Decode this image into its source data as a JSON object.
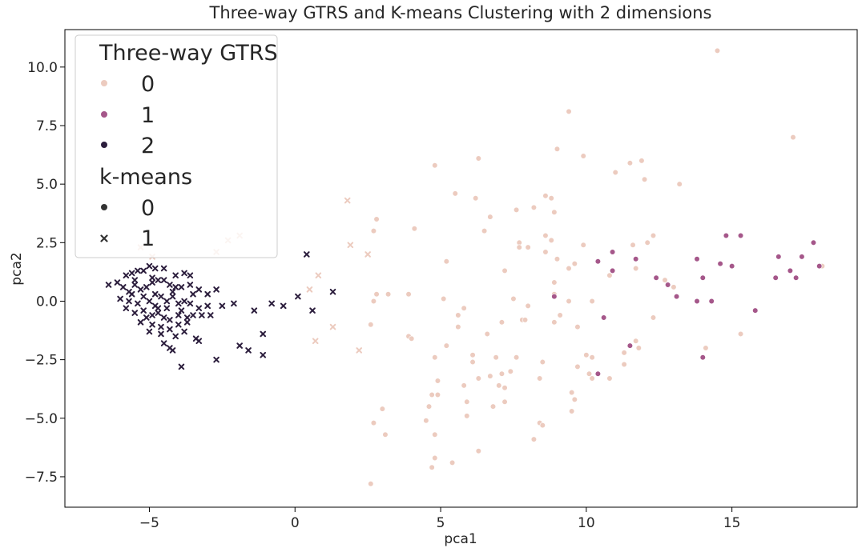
{
  "chart_data": {
    "type": "scatter",
    "title": "Three-way GTRS and K-means Clustering with 2 dimensions",
    "xlabel": "pca1",
    "ylabel": "pca2",
    "xlim": [
      -7.9,
      19.3
    ],
    "ylim": [
      -8.8,
      11.6
    ],
    "xticks": [
      -5,
      0,
      5,
      10,
      15
    ],
    "xtick_labels": [
      "−5",
      "0",
      "5",
      "10",
      "15"
    ],
    "yticks": [
      -7.5,
      -5.0,
      -2.5,
      0.0,
      2.5,
      5.0,
      7.5,
      10.0
    ],
    "ytick_labels": [
      "−7.5",
      "−5.0",
      "−2.5",
      "0.0",
      "2.5",
      "5.0",
      "7.5",
      "10.0"
    ],
    "grid": false,
    "legend_position": "top-left",
    "legend": {
      "hue_title": "Three-way GTRS",
      "hue_entries": [
        {
          "label": "0",
          "color": "#eccbbf"
        },
        {
          "label": "1",
          "color": "#a5578a"
        },
        {
          "label": "2",
          "color": "#2c1e3d"
        }
      ],
      "style_title": "k-means",
      "style_entries": [
        {
          "label": "0",
          "marker": "circle",
          "color": "#333333"
        },
        {
          "label": "1",
          "marker": "x",
          "color": "#333333"
        }
      ]
    },
    "series": [
      {
        "gtrs": "0",
        "kmeans": "0",
        "marker": "circle",
        "color": "#eccbbf",
        "points": [
          [
            14.5,
            10.7
          ],
          [
            9.4,
            8.1
          ],
          [
            17.1,
            7.0
          ],
          [
            9.0,
            6.5
          ],
          [
            9.9,
            6.2
          ],
          [
            6.3,
            6.1
          ],
          [
            11.9,
            6.0
          ],
          [
            11.5,
            5.9
          ],
          [
            4.8,
            5.8
          ],
          [
            11.0,
            5.5
          ],
          [
            12.0,
            5.2
          ],
          [
            13.2,
            5.0
          ],
          [
            5.5,
            4.6
          ],
          [
            6.2,
            4.4
          ],
          [
            8.6,
            4.5
          ],
          [
            8.8,
            4.4
          ],
          [
            8.2,
            4.0
          ],
          [
            7.6,
            3.9
          ],
          [
            8.9,
            3.8
          ],
          [
            6.7,
            3.6
          ],
          [
            2.8,
            3.5
          ],
          [
            4.1,
            3.1
          ],
          [
            6.5,
            3.0
          ],
          [
            2.7,
            3.0
          ],
          [
            7.7,
            2.5
          ],
          [
            8.6,
            2.8
          ],
          [
            8.8,
            2.6
          ],
          [
            12.3,
            2.8
          ],
          [
            12.1,
            2.5
          ],
          [
            7.7,
            2.3
          ],
          [
            8.0,
            2.3
          ],
          [
            9.9,
            2.4
          ],
          [
            11.6,
            2.4
          ],
          [
            8.6,
            2.1
          ],
          [
            9.0,
            1.8
          ],
          [
            5.2,
            1.7
          ],
          [
            9.6,
            1.6
          ],
          [
            9.4,
            1.4
          ],
          [
            11.7,
            1.4
          ],
          [
            18.1,
            1.5
          ],
          [
            7.2,
            1.3
          ],
          [
            10.8,
            1.1
          ],
          [
            8.9,
            0.8
          ],
          [
            12.7,
            0.9
          ],
          [
            13.0,
            0.6
          ],
          [
            2.8,
            0.3
          ],
          [
            3.2,
            0.3
          ],
          [
            3.9,
            0.3
          ],
          [
            8.9,
            0.3
          ],
          [
            2.7,
            0.0
          ],
          [
            7.5,
            0.1
          ],
          [
            10.2,
            0.0
          ],
          [
            9.4,
            0.0
          ],
          [
            5.1,
            0.1
          ],
          [
            8.0,
            -0.2
          ],
          [
            5.8,
            -0.3
          ],
          [
            9.1,
            -0.6
          ],
          [
            5.6,
            -0.6
          ],
          [
            7.8,
            -0.8
          ],
          [
            7.9,
            -0.8
          ],
          [
            12.3,
            -0.7
          ],
          [
            2.6,
            -1.0
          ],
          [
            5.6,
            -1.1
          ],
          [
            8.9,
            -0.9
          ],
          [
            7.1,
            -0.9
          ],
          [
            9.7,
            -1.1
          ],
          [
            6.6,
            -1.4
          ],
          [
            15.3,
            -1.4
          ],
          [
            3.9,
            -1.5
          ],
          [
            4.0,
            -1.6
          ],
          [
            11.7,
            -1.7
          ],
          [
            5.2,
            -1.9
          ],
          [
            11.8,
            -2.0
          ],
          [
            14.1,
            -2.0
          ],
          [
            11.3,
            -2.2
          ],
          [
            6.1,
            -2.3
          ],
          [
            10.0,
            -2.3
          ],
          [
            4.8,
            -2.4
          ],
          [
            6.9,
            -2.4
          ],
          [
            10.2,
            -2.4
          ],
          [
            7.6,
            -2.4
          ],
          [
            6.1,
            -2.6
          ],
          [
            8.5,
            -2.6
          ],
          [
            9.7,
            -2.8
          ],
          [
            11.3,
            -2.7
          ],
          [
            7.4,
            -3.0
          ],
          [
            7.1,
            -3.1
          ],
          [
            10.1,
            -3.1
          ],
          [
            6.3,
            -3.3
          ],
          [
            6.7,
            -3.2
          ],
          [
            8.4,
            -3.3
          ],
          [
            10.2,
            -3.3
          ],
          [
            10.8,
            -3.3
          ],
          [
            4.9,
            -3.4
          ],
          [
            7.0,
            -3.6
          ],
          [
            7.2,
            -3.7
          ],
          [
            5.8,
            -3.6
          ],
          [
            4.7,
            -4.0
          ],
          [
            4.9,
            -4.0
          ],
          [
            9.5,
            -3.9
          ],
          [
            9.6,
            -4.2
          ],
          [
            7.2,
            -4.3
          ],
          [
            5.9,
            -4.3
          ],
          [
            4.6,
            -4.5
          ],
          [
            6.8,
            -4.5
          ],
          [
            9.5,
            -4.7
          ],
          [
            3.0,
            -4.6
          ],
          [
            5.9,
            -4.9
          ],
          [
            4.5,
            -5.1
          ],
          [
            8.4,
            -5.2
          ],
          [
            8.5,
            -5.3
          ],
          [
            2.7,
            -5.2
          ],
          [
            4.8,
            -5.7
          ],
          [
            3.1,
            -5.7
          ],
          [
            8.2,
            -5.9
          ],
          [
            6.3,
            -6.4
          ],
          [
            4.8,
            -6.7
          ],
          [
            5.4,
            -6.9
          ],
          [
            4.7,
            -7.1
          ],
          [
            2.6,
            -7.8
          ]
        ]
      },
      {
        "gtrs": "0",
        "kmeans": "1",
        "marker": "x",
        "color": "#eccbbf",
        "points": [
          [
            1.8,
            4.3
          ],
          [
            -1.9,
            2.8
          ],
          [
            -2.3,
            2.6
          ],
          [
            -2.7,
            2.1
          ],
          [
            2.5,
            2.0
          ],
          [
            1.9,
            2.4
          ],
          [
            -4.9,
            1.9
          ],
          [
            0.8,
            1.1
          ],
          [
            0.5,
            0.5
          ],
          [
            1.3,
            -1.1
          ],
          [
            0.7,
            -1.7
          ],
          [
            2.2,
            -2.1
          ],
          [
            -5.3,
            2.3
          ]
        ]
      },
      {
        "gtrs": "1",
        "kmeans": "0",
        "marker": "circle",
        "color": "#a5578a",
        "points": [
          [
            14.8,
            2.8
          ],
          [
            15.3,
            2.8
          ],
          [
            17.8,
            2.5
          ],
          [
            10.9,
            2.1
          ],
          [
            17.4,
            1.9
          ],
          [
            16.6,
            1.9
          ],
          [
            13.8,
            1.8
          ],
          [
            11.7,
            1.8
          ],
          [
            10.4,
            1.7
          ],
          [
            14.6,
            1.6
          ],
          [
            15.0,
            1.5
          ],
          [
            18.0,
            1.5
          ],
          [
            10.9,
            1.3
          ],
          [
            17.0,
            1.3
          ],
          [
            12.4,
            1.0
          ],
          [
            14.0,
            1.0
          ],
          [
            16.5,
            1.0
          ],
          [
            17.2,
            1.0
          ],
          [
            12.8,
            0.7
          ],
          [
            8.9,
            0.2
          ],
          [
            13.1,
            0.2
          ],
          [
            13.8,
            0.0
          ],
          [
            14.3,
            0.0
          ],
          [
            15.8,
            -0.4
          ],
          [
            10.6,
            -0.7
          ],
          [
            14.0,
            -2.4
          ],
          [
            11.5,
            -1.9
          ],
          [
            10.4,
            -3.1
          ]
        ]
      },
      {
        "gtrs": "2",
        "kmeans": "1",
        "marker": "x",
        "color": "#2c1e3d",
        "points": [
          [
            -6.4,
            0.7
          ],
          [
            -6.1,
            0.8
          ],
          [
            -5.8,
            1.1
          ],
          [
            -5.6,
            1.2
          ],
          [
            -5.4,
            1.3
          ],
          [
            -5.2,
            1.3
          ],
          [
            -5.0,
            1.5
          ],
          [
            -4.8,
            1.4
          ],
          [
            -4.5,
            1.4
          ],
          [
            -3.8,
            1.2
          ],
          [
            -3.6,
            1.1
          ],
          [
            -5.9,
            0.6
          ],
          [
            -5.7,
            0.4
          ],
          [
            -5.5,
            0.9
          ],
          [
            -5.3,
            0.5
          ],
          [
            -5.1,
            0.6
          ],
          [
            -4.9,
            0.8
          ],
          [
            -4.7,
            0.9
          ],
          [
            -4.5,
            0.9
          ],
          [
            -4.3,
            0.7
          ],
          [
            -4.1,
            0.6
          ],
          [
            -3.9,
            0.6
          ],
          [
            -3.6,
            0.7
          ],
          [
            -3.3,
            0.5
          ],
          [
            -3.0,
            0.3
          ],
          [
            -2.7,
            0.5
          ],
          [
            -6.0,
            0.1
          ],
          [
            -5.7,
            0.0
          ],
          [
            -5.4,
            -0.1
          ],
          [
            -5.2,
            0.2
          ],
          [
            -5.0,
            0.0
          ],
          [
            -4.8,
            0.3
          ],
          [
            -4.6,
            0.2
          ],
          [
            -4.4,
            0.0
          ],
          [
            -4.2,
            0.2
          ],
          [
            -4.0,
            -0.1
          ],
          [
            -3.8,
            0.0
          ],
          [
            -3.6,
            -0.1
          ],
          [
            -3.3,
            -0.3
          ],
          [
            -3.0,
            -0.2
          ],
          [
            -2.5,
            -0.2
          ],
          [
            -2.1,
            -0.1
          ],
          [
            -5.8,
            -0.3
          ],
          [
            -5.5,
            -0.5
          ],
          [
            -5.2,
            -0.4
          ],
          [
            -4.9,
            -0.6
          ],
          [
            -4.7,
            -0.5
          ],
          [
            -4.5,
            -0.7
          ],
          [
            -4.3,
            -0.8
          ],
          [
            -4.0,
            -0.6
          ],
          [
            -3.7,
            -0.7
          ],
          [
            -3.5,
            -0.6
          ],
          [
            -3.2,
            -0.6
          ],
          [
            -5.3,
            -0.9
          ],
          [
            -4.9,
            -1.0
          ],
          [
            -4.6,
            -1.1
          ],
          [
            -4.3,
            -1.2
          ],
          [
            -4.0,
            -1.0
          ],
          [
            -3.7,
            -0.9
          ],
          [
            -5.0,
            -1.3
          ],
          [
            -4.6,
            -1.4
          ],
          [
            -4.1,
            -1.5
          ],
          [
            -3.8,
            -1.3
          ],
          [
            -3.4,
            -1.6
          ],
          [
            -3.3,
            -1.7
          ],
          [
            -4.5,
            -1.8
          ],
          [
            -4.3,
            -2.0
          ],
          [
            -4.2,
            -2.1
          ],
          [
            -3.9,
            -2.8
          ],
          [
            -2.7,
            -2.5
          ],
          [
            -1.9,
            -1.9
          ],
          [
            -1.6,
            -2.1
          ],
          [
            -1.1,
            -2.3
          ],
          [
            -1.1,
            -1.4
          ],
          [
            -1.4,
            -0.4
          ],
          [
            -0.8,
            -0.1
          ],
          [
            -0.4,
            -0.2
          ],
          [
            0.1,
            0.2
          ],
          [
            0.6,
            -0.4
          ],
          [
            0.4,
            2.0
          ],
          [
            1.3,
            0.4
          ],
          [
            -4.8,
            -0.2
          ],
          [
            -5.1,
            -0.7
          ],
          [
            -4.4,
            -0.3
          ],
          [
            -3.5,
            0.3
          ],
          [
            -5.6,
            0.3
          ],
          [
            -4.9,
            1.0
          ],
          [
            -4.2,
            0.4
          ],
          [
            -3.9,
            -0.4
          ],
          [
            -2.9,
            -0.6
          ],
          [
            -4.7,
            -0.3
          ],
          [
            -5.5,
            0.7
          ],
          [
            -4.1,
            1.1
          ]
        ]
      }
    ]
  }
}
